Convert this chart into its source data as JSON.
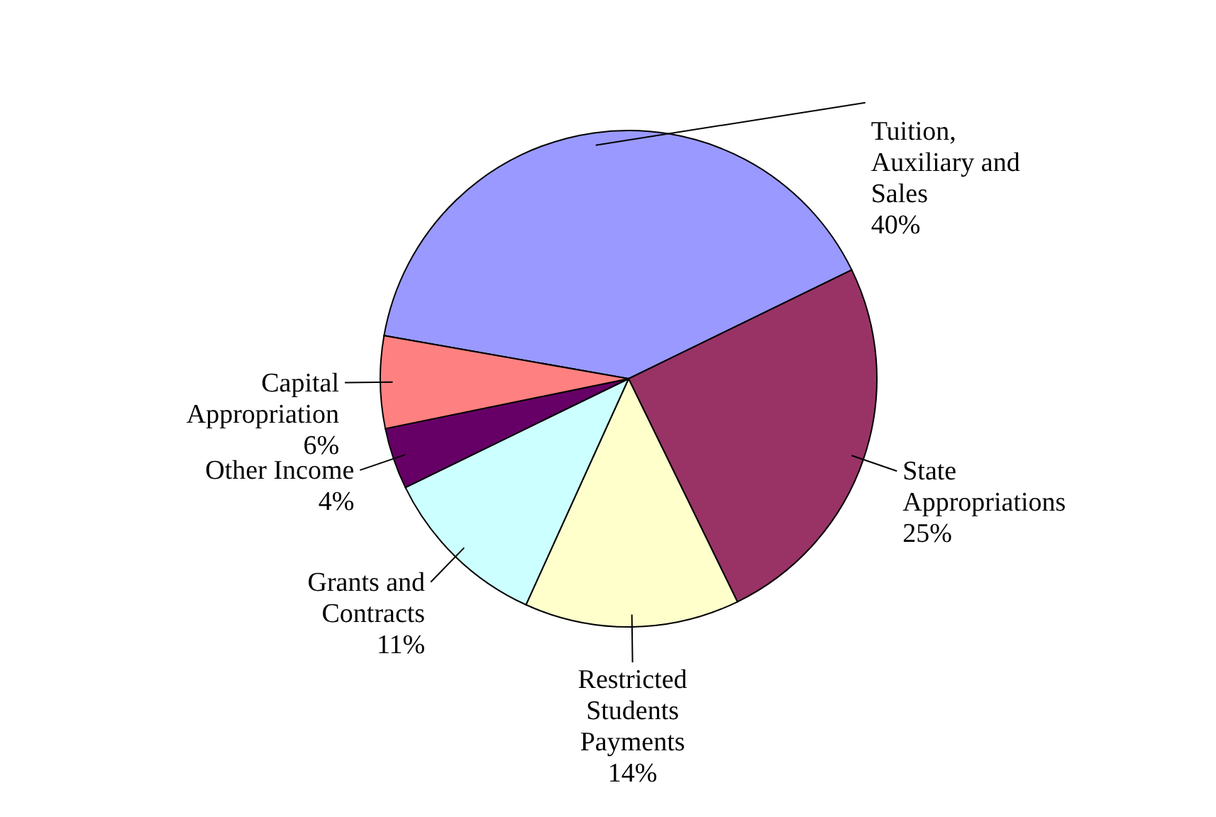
{
  "chart_data": {
    "type": "pie",
    "categories": [
      "Tuition, Auxiliary and Sales",
      "State Appropriations",
      "Restricted Students Payments",
      "Grants and Contracts",
      "Other Income",
      "Capital Appropriation"
    ],
    "values": [
      40,
      25,
      14,
      11,
      4,
      6
    ],
    "colors": [
      "#9999ff",
      "#993366",
      "#ffffcc",
      "#ccffff",
      "#660066",
      "#ff8080"
    ],
    "value_labels": [
      "40%",
      "25%",
      "14%",
      "11%",
      "4%",
      "6%"
    ]
  }
}
